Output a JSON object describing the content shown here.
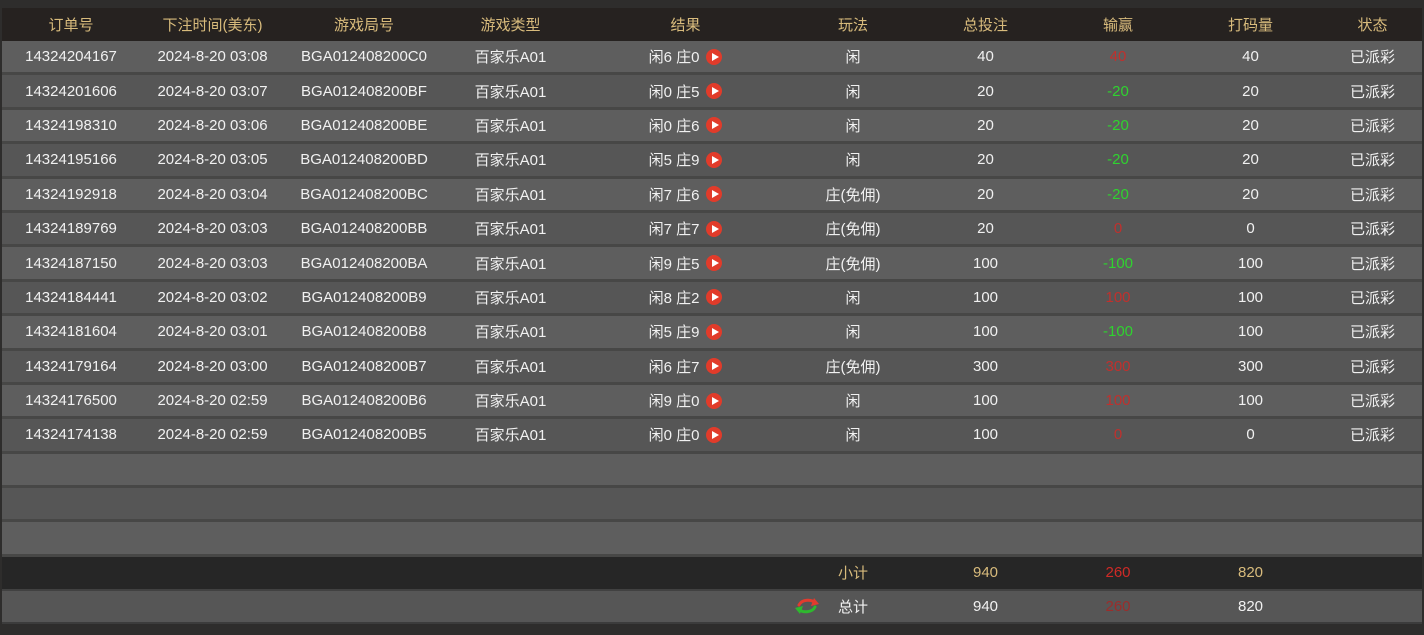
{
  "table": {
    "columns": [
      {
        "key": "order",
        "label": "订单号"
      },
      {
        "key": "time",
        "label": "下注时间(美东)"
      },
      {
        "key": "round",
        "label": "游戏局号"
      },
      {
        "key": "game_type",
        "label": "游戏类型"
      },
      {
        "key": "result",
        "label": "结果"
      },
      {
        "key": "play",
        "label": "玩法"
      },
      {
        "key": "total_bet",
        "label": "总投注"
      },
      {
        "key": "win_loss",
        "label": "输赢"
      },
      {
        "key": "turnover",
        "label": "打码量"
      },
      {
        "key": "status",
        "label": "状态"
      }
    ],
    "rows": [
      {
        "order": "14324204167",
        "time": "2024-8-20 03:08",
        "round": "BGA012408200C0",
        "game_type": "百家乐A01",
        "result": "闲6 庄0",
        "play": "闲",
        "total_bet": "40",
        "win_loss": "40",
        "win_loss_color": "red",
        "turnover": "40",
        "status": "已派彩"
      },
      {
        "order": "14324201606",
        "time": "2024-8-20 03:07",
        "round": "BGA012408200BF",
        "game_type": "百家乐A01",
        "result": "闲0 庄5",
        "play": "闲",
        "total_bet": "20",
        "win_loss": "-20",
        "win_loss_color": "green",
        "turnover": "20",
        "status": "已派彩"
      },
      {
        "order": "14324198310",
        "time": "2024-8-20 03:06",
        "round": "BGA012408200BE",
        "game_type": "百家乐A01",
        "result": "闲0 庄6",
        "play": "闲",
        "total_bet": "20",
        "win_loss": "-20",
        "win_loss_color": "green",
        "turnover": "20",
        "status": "已派彩"
      },
      {
        "order": "14324195166",
        "time": "2024-8-20 03:05",
        "round": "BGA012408200BD",
        "game_type": "百家乐A01",
        "result": "闲5 庄9",
        "play": "闲",
        "total_bet": "20",
        "win_loss": "-20",
        "win_loss_color": "green",
        "turnover": "20",
        "status": "已派彩"
      },
      {
        "order": "14324192918",
        "time": "2024-8-20 03:04",
        "round": "BGA012408200BC",
        "game_type": "百家乐A01",
        "result": "闲7 庄6",
        "play": "庄(免佣)",
        "total_bet": "20",
        "win_loss": "-20",
        "win_loss_color": "green",
        "turnover": "20",
        "status": "已派彩"
      },
      {
        "order": "14324189769",
        "time": "2024-8-20 03:03",
        "round": "BGA012408200BB",
        "game_type": "百家乐A01",
        "result": "闲7 庄7",
        "play": "庄(免佣)",
        "total_bet": "20",
        "win_loss": "0",
        "win_loss_color": "red",
        "turnover": "0",
        "status": "已派彩"
      },
      {
        "order": "14324187150",
        "time": "2024-8-20 03:03",
        "round": "BGA012408200BA",
        "game_type": "百家乐A01",
        "result": "闲9 庄5",
        "play": "庄(免佣)",
        "total_bet": "100",
        "win_loss": "-100",
        "win_loss_color": "green",
        "turnover": "100",
        "status": "已派彩"
      },
      {
        "order": "14324184441",
        "time": "2024-8-20 03:02",
        "round": "BGA012408200B9",
        "game_type": "百家乐A01",
        "result": "闲8 庄2",
        "play": "闲",
        "total_bet": "100",
        "win_loss": "100",
        "win_loss_color": "red",
        "turnover": "100",
        "status": "已派彩"
      },
      {
        "order": "14324181604",
        "time": "2024-8-20 03:01",
        "round": "BGA012408200B8",
        "game_type": "百家乐A01",
        "result": "闲5 庄9",
        "play": "闲",
        "total_bet": "100",
        "win_loss": "-100",
        "win_loss_color": "green",
        "turnover": "100",
        "status": "已派彩"
      },
      {
        "order": "14324179164",
        "time": "2024-8-20 03:00",
        "round": "BGA012408200B7",
        "game_type": "百家乐A01",
        "result": "闲6 庄7",
        "play": "庄(免佣)",
        "total_bet": "300",
        "win_loss": "300",
        "win_loss_color": "red",
        "turnover": "300",
        "status": "已派彩"
      },
      {
        "order": "14324176500",
        "time": "2024-8-20 02:59",
        "round": "BGA012408200B6",
        "game_type": "百家乐A01",
        "result": "闲9 庄0",
        "play": "闲",
        "total_bet": "100",
        "win_loss": "100",
        "win_loss_color": "red",
        "turnover": "100",
        "status": "已派彩"
      },
      {
        "order": "14324174138",
        "time": "2024-8-20 02:59",
        "round": "BGA012408200B5",
        "game_type": "百家乐A01",
        "result": "闲0 庄0",
        "play": "闲",
        "total_bet": "100",
        "win_loss": "0",
        "win_loss_color": "red",
        "turnover": "0",
        "status": "已派彩"
      }
    ],
    "empty_row_count": 3
  },
  "footer": {
    "subtotal": {
      "label": "小计",
      "total_bet": "940",
      "win_loss": "260",
      "win_loss_color": "red",
      "turnover": "820"
    },
    "total": {
      "label": "总计",
      "total_bet": "940",
      "win_loss": "260",
      "win_loss_color": "red",
      "turnover": "820"
    }
  },
  "icons": {
    "play": "play-icon",
    "swap": "swap-arrows-icon"
  },
  "colors": {
    "header_bg": "#262220",
    "header_text": "#d8bb7c",
    "gold": "#d8bb7c",
    "win_red": "#c0302d",
    "loss_green": "#2fd32f",
    "subtotal_red": "#cf2a26",
    "total_red_dim": "#9b2d2b",
    "play_button_red": "#e13b2a",
    "swap_arrow_red": "#e23b2e",
    "swap_arrow_green": "#2eb82e",
    "row_odd": "#5e5e5e",
    "row_even": "#565656"
  }
}
